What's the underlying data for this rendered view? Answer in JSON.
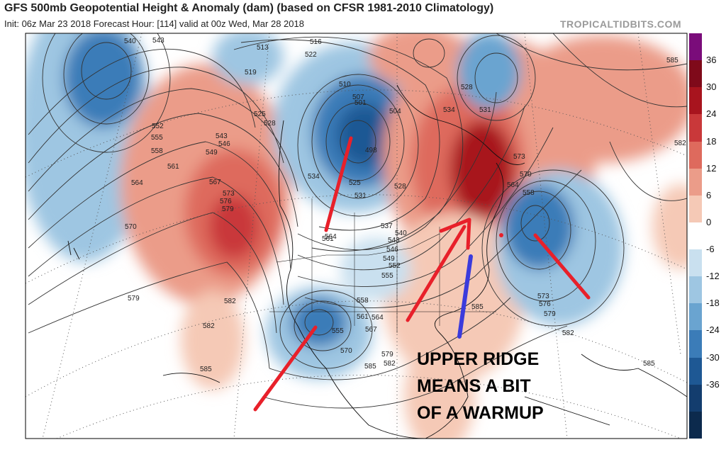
{
  "title": "GFS 500mb Geopotential Height & Anomaly (dam) (based on CFSR 1981-2010 Climatology)",
  "subtitle": "Init: 06z Mar 23 2018   Forecast Hour: [114]   valid at 00z Wed, Mar 28 2018",
  "credit": "TROPICALTIDBITS.COM",
  "annotation": {
    "line1": "UPPER RIDGE",
    "line2": "MEANS A BIT",
    "line3": "OF A  WARMUP",
    "text_color": "#000000",
    "arrow_color": "#e8202a",
    "marker_color": "#3b3bdc"
  },
  "colorbar": {
    "ticks": [
      "36",
      "30",
      "24",
      "18",
      "12",
      "6",
      "0",
      "-6",
      "-12",
      "-18",
      "-24",
      "-30",
      "-36"
    ],
    "colors": [
      "#7a0c7a",
      "#7f0a1a",
      "#a8141e",
      "#c9383a",
      "#de6a5d",
      "#eb9c89",
      "#f5c9b6",
      "#ffffff",
      "#c9e0ef",
      "#9ec6e2",
      "#6aa4d0",
      "#3b7cb8",
      "#1e5894",
      "#133d6e",
      "#0c2a4d"
    ]
  },
  "contour_labels": [
    "540",
    "543",
    "513",
    "516",
    "522",
    "519",
    "525",
    "528",
    "510",
    "507",
    "501",
    "504",
    "498",
    "534",
    "531",
    "528",
    "552",
    "555",
    "558",
    "549",
    "546",
    "543",
    "561",
    "564",
    "567",
    "573",
    "576",
    "579",
    "570",
    "582",
    "534",
    "525",
    "531",
    "528",
    "537",
    "540",
    "543",
    "546",
    "549",
    "552",
    "555",
    "564",
    "561",
    "573",
    "570",
    "564",
    "558",
    "585",
    "558",
    "561",
    "564",
    "567",
    "555",
    "570",
    "579",
    "582",
    "585",
    "573",
    "576",
    "579",
    "582",
    "585",
    "582",
    "579",
    "582",
    "585",
    "585"
  ]
}
